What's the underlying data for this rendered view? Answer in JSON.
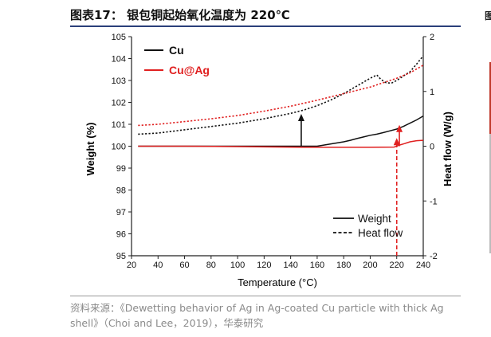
{
  "page": {
    "title": "图表17：  银包铜起始氧化温度为 220℃",
    "source": "资料来源：《Dewetting behavior of Ag in Ag-coated Cu particle with thick Ag shell》（Choi and Lee，2019），华泰研究",
    "edge_glyph": "图"
  },
  "chart_data": {
    "type": "line",
    "xlabel": "Temperature (°C)",
    "ylabel": "Weight (%)",
    "y2label": "Heat flow (W/g)",
    "xlim": [
      20,
      240
    ],
    "ylim": [
      95,
      105
    ],
    "y2lim": [
      -2,
      2
    ],
    "xticks": [
      20,
      40,
      60,
      80,
      100,
      120,
      140,
      160,
      180,
      200,
      220,
      240
    ],
    "yticks": [
      95,
      96,
      97,
      98,
      99,
      100,
      101,
      102,
      103,
      104,
      105
    ],
    "y2ticks": [
      -2,
      -1,
      0,
      1,
      2
    ],
    "legend_top": [
      {
        "label": "Cu",
        "color": "#111111"
      },
      {
        "label": "Cu@Ag",
        "color": "#e02020"
      }
    ],
    "legend_bottom": [
      {
        "label": "Weight",
        "style": "solid"
      },
      {
        "label": "Heat flow",
        "style": "dashed"
      }
    ],
    "series": [
      {
        "name": "Cu weight",
        "axis": "left",
        "style": "solid",
        "color": "#111111",
        "x": [
          25,
          60,
          100,
          130,
          150,
          160,
          165,
          170,
          175,
          180,
          185,
          190,
          195,
          200,
          205,
          210,
          215,
          220,
          225,
          230,
          235,
          240
        ],
        "y": [
          100,
          100,
          100,
          100,
          100,
          100,
          100.05,
          100.1,
          100.15,
          100.2,
          100.27,
          100.35,
          100.42,
          100.5,
          100.55,
          100.62,
          100.7,
          100.78,
          100.9,
          101.05,
          101.2,
          101.38
        ]
      },
      {
        "name": "Cu@Ag weight",
        "axis": "left",
        "style": "solid",
        "color": "#e02020",
        "x": [
          25,
          60,
          100,
          150,
          200,
          218,
          222,
          226,
          230,
          235,
          240
        ],
        "y": [
          100,
          100,
          99.98,
          99.95,
          99.95,
          99.96,
          100.05,
          100.12,
          100.2,
          100.25,
          100.27
        ]
      },
      {
        "name": "Cu heat flow",
        "axis": "right",
        "style": "dashed",
        "color": "#111111",
        "x": [
          25,
          40,
          60,
          80,
          100,
          120,
          140,
          150,
          160,
          170,
          180,
          190,
          200,
          205,
          208,
          212,
          216,
          220,
          225,
          230,
          235,
          240
        ],
        "y": [
          0.22,
          0.24,
          0.3,
          0.36,
          0.42,
          0.5,
          0.6,
          0.66,
          0.74,
          0.84,
          0.96,
          1.1,
          1.24,
          1.3,
          1.22,
          1.16,
          1.15,
          1.2,
          1.28,
          1.36,
          1.5,
          1.65
        ]
      },
      {
        "name": "Cu@Ag heat flow",
        "axis": "right",
        "style": "dashed",
        "color": "#e02020",
        "x": [
          25,
          40,
          60,
          80,
          100,
          120,
          140,
          160,
          180,
          200,
          220,
          230,
          240
        ],
        "y": [
          0.38,
          0.4,
          0.45,
          0.5,
          0.56,
          0.64,
          0.73,
          0.84,
          0.96,
          1.08,
          1.24,
          1.34,
          1.48
        ]
      }
    ],
    "annotations": [
      {
        "type": "arrow",
        "color": "#111111",
        "style": "solid",
        "x": 148,
        "from": 100,
        "to": 101.4
      },
      {
        "type": "arrow",
        "color": "#e02020",
        "style": "solid",
        "x": 222,
        "from": 100,
        "to": 100.9
      },
      {
        "type": "arrow",
        "color": "#e02020",
        "style": "dashed",
        "x": 220,
        "from": 95,
        "to": 100.3
      }
    ]
  }
}
